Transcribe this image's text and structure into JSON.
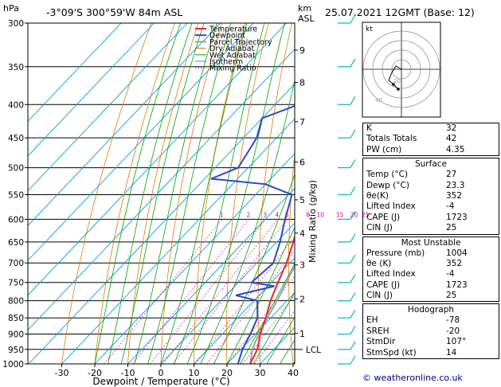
{
  "header": {
    "location": "-3°09'S  300°59'W  84m  ASL",
    "datetime": "25.07.2021  12GMT  (Base: 12)",
    "hpa_label": "hPa",
    "km_label": "km",
    "asl_label": "ASL"
  },
  "chart_data": {
    "type": "skewt",
    "title": "",
    "xlabel": "Dewpoint / Temperature (°C)",
    "ylabel_right": "Mixing Ratio (g/kg)",
    "xlim": [
      -35,
      40
    ],
    "pressure_range": [
      300,
      1000
    ],
    "x_ticks": [
      -30,
      -20,
      -10,
      0,
      10,
      20,
      30,
      40
    ],
    "pressure_ticks": [
      300,
      350,
      400,
      450,
      500,
      550,
      600,
      650,
      700,
      750,
      800,
      850,
      900,
      950,
      1000
    ],
    "km_ticks": [
      {
        "km": 9,
        "p": 330
      },
      {
        "km": 8,
        "p": 370
      },
      {
        "km": 7,
        "p": 425
      },
      {
        "km": 6,
        "p": 490
      },
      {
        "km": 5,
        "p": 560
      },
      {
        "km": 4,
        "p": 630
      },
      {
        "km": 3,
        "p": 705
      },
      {
        "km": 2,
        "p": 795
      },
      {
        "km": 1,
        "p": 898
      }
    ],
    "lcl_label": "LCL",
    "lcl_pressure": 950,
    "mixing_ratio_labels": [
      1,
      2,
      3,
      4,
      5,
      8,
      10,
      15,
      20,
      25
    ],
    "legend": [
      "Temperature",
      "Dewpoint",
      "Parcel Trajectory",
      "Dry Adiabat",
      "Wet Adiabat",
      "Isotherm",
      "Mixing Ratio"
    ],
    "colors": {
      "temperature": "#e8272a",
      "dewpoint": "#2848c8",
      "parcel": "#a0a0a0",
      "dry_adiabat": "#e07b00",
      "wet_adiabat": "#00a000",
      "isotherm": "#00a0e0",
      "mixing_ratio": "#d000a0",
      "wind": "#00b8c8"
    },
    "temperature": [
      {
        "p": 1000,
        "t": 27.0
      },
      {
        "p": 950,
        "t": 25.0
      },
      {
        "p": 900,
        "t": 21.5
      },
      {
        "p": 850,
        "t": 18.5
      },
      {
        "p": 800,
        "t": 15.0
      },
      {
        "p": 750,
        "t": 12.0
      },
      {
        "p": 700,
        "t": 9.0
      },
      {
        "p": 650,
        "t": 5.0
      },
      {
        "p": 600,
        "t": 0.5
      },
      {
        "p": 550,
        "t": -4.0
      },
      {
        "p": 530,
        "t": -6.5
      },
      {
        "p": 500,
        "t": -8.0
      },
      {
        "p": 450,
        "t": -13.0
      },
      {
        "p": 400,
        "t": -19.0
      },
      {
        "p": 375,
        "t": -23.0
      },
      {
        "p": 350,
        "t": -27.0
      },
      {
        "p": 300,
        "t": -36.0
      }
    ],
    "dewpoint": [
      {
        "p": 1000,
        "t": 23.3
      },
      {
        "p": 950,
        "t": 20.5
      },
      {
        "p": 900,
        "t": 18.5
      },
      {
        "p": 850,
        "t": 16.0
      },
      {
        "p": 800,
        "t": 11.0
      },
      {
        "p": 785,
        "t": 3.0
      },
      {
        "p": 760,
        "t": 12.0
      },
      {
        "p": 750,
        "t": 4.0
      },
      {
        "p": 700,
        "t": 5.0
      },
      {
        "p": 650,
        "t": 1.0
      },
      {
        "p": 600,
        "t": -4.0
      },
      {
        "p": 550,
        "t": -9.0
      },
      {
        "p": 530,
        "t": -20.0
      },
      {
        "p": 520,
        "t": -38.0
      },
      {
        "p": 500,
        "t": -33.0
      },
      {
        "p": 450,
        "t": -36.0
      },
      {
        "p": 420,
        "t": -40.0
      },
      {
        "p": 400,
        "t": -33.0
      },
      {
        "p": 390,
        "t": -20.0
      },
      {
        "p": 360,
        "t": -17.0
      },
      {
        "p": 350,
        "t": -22.0
      },
      {
        "p": 335,
        "t": -20.0
      },
      {
        "p": 320,
        "t": -27.0
      },
      {
        "p": 300,
        "t": -28.0
      }
    ],
    "parcel": [
      {
        "p": 1000,
        "t": 27.0
      },
      {
        "p": 950,
        "t": 23.5
      },
      {
        "p": 900,
        "t": 21.0
      },
      {
        "p": 850,
        "t": 19.0
      },
      {
        "p": 800,
        "t": 17.0
      },
      {
        "p": 750,
        "t": 14.5
      },
      {
        "p": 700,
        "t": 12.0
      },
      {
        "p": 650,
        "t": 9.0
      },
      {
        "p": 600,
        "t": 5.5
      },
      {
        "p": 550,
        "t": 1.5
      },
      {
        "p": 500,
        "t": -3.0
      },
      {
        "p": 450,
        "t": -8.5
      },
      {
        "p": 400,
        "t": -15.0
      },
      {
        "p": 350,
        "t": -22.5
      },
      {
        "p": 300,
        "t": -31.0
      }
    ],
    "wind_pressures": [
      300,
      350,
      400,
      450,
      500,
      550,
      600,
      650,
      700,
      750,
      800,
      850,
      900,
      950,
      1000
    ]
  },
  "indices": [
    {
      "label": "K",
      "value": "32"
    },
    {
      "label": "Totals Totals",
      "value": "42"
    },
    {
      "label": "PW (cm)",
      "value": "4.35"
    }
  ],
  "surface": {
    "title": "Surface",
    "rows": [
      {
        "label": "Temp (°C)",
        "value": "27"
      },
      {
        "label": "Dewp (°C)",
        "value": "23.3"
      },
      {
        "label": "θe(K)",
        "value": "352"
      },
      {
        "label": "Lifted Index",
        "value": "-4"
      },
      {
        "label": "CAPE (J)",
        "value": "1723"
      },
      {
        "label": "CIN (J)",
        "value": "25"
      }
    ]
  },
  "most_unstable": {
    "title": "Most Unstable",
    "rows": [
      {
        "label": "Pressure (mb)",
        "value": "1004"
      },
      {
        "label": "θe (K)",
        "value": "352"
      },
      {
        "label": "Lifted Index",
        "value": "-4"
      },
      {
        "label": "CAPE (J)",
        "value": "1723"
      },
      {
        "label": "CIN (J)",
        "value": "25"
      }
    ]
  },
  "hodograph_stats": {
    "title": "Hodograph",
    "rows": [
      {
        "label": "EH",
        "value": "-78"
      },
      {
        "label": "SREH",
        "value": "-20"
      },
      {
        "label": "StmDir",
        "value": "107°"
      },
      {
        "label": "StmSpd (kt)",
        "value": "14"
      }
    ]
  },
  "hodograph": {
    "unit_label": "kt",
    "ring_labels": [
      "20",
      "40"
    ]
  },
  "copyright": "© weatheronline.co.uk"
}
